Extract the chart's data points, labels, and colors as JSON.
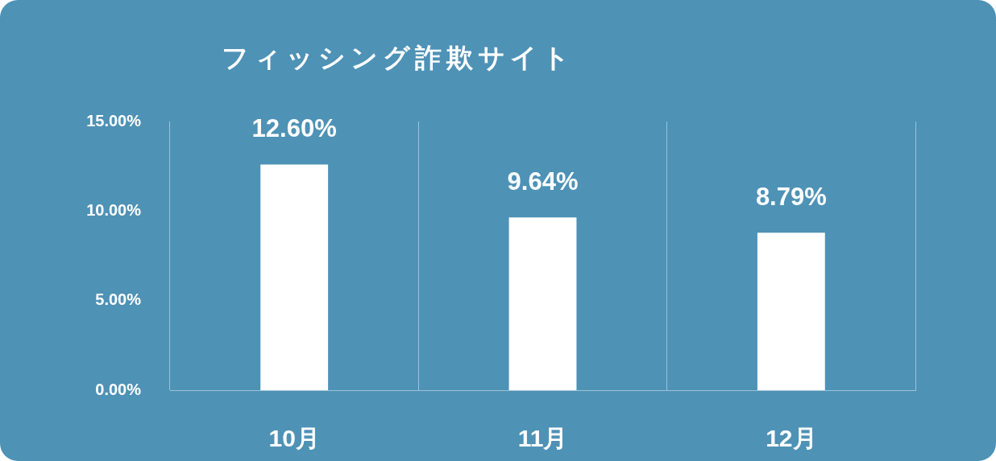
{
  "chart_data": {
    "type": "bar",
    "title": "フィッシング詐欺サイト",
    "categories": [
      "10月",
      "11月",
      "12月"
    ],
    "values": [
      12.6,
      9.64,
      8.79
    ],
    "value_labels": [
      "12.60%",
      "9.64%",
      "8.79%"
    ],
    "color": "#ffffff",
    "ylim": [
      0,
      15
    ],
    "yticks": [
      {
        "value": 0,
        "label": "0.00%"
      },
      {
        "value": 5,
        "label": "5.00%"
      },
      {
        "value": 10,
        "label": "10.00%"
      },
      {
        "value": 15,
        "label": "15.00%"
      }
    ],
    "grid": "x",
    "legend": false
  }
}
